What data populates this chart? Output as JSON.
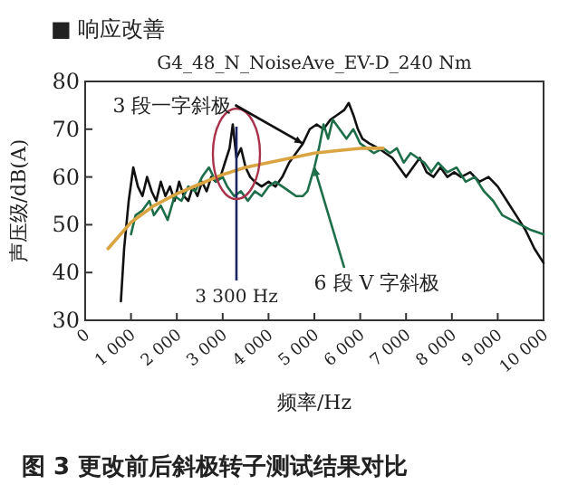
{
  "chart_data": {
    "type": "line",
    "title": "■ 响应改善",
    "subtitle": "G4_48_N_NoiseAve_EV-D_240 Nm",
    "xlabel": "频率/Hz",
    "ylabel": "声压级/dB(A)",
    "annotations": [
      "图 3 更改前后斜极转子测试结果对比"
    ],
    "xlim": [
      0,
      10000
    ],
    "ylim": [
      30,
      80
    ],
    "xticks": [
      0,
      {
        "value": 1000,
        "label": "1 000"
      },
      {
        "value": 2000,
        "label": "2 000"
      },
      {
        "value": 3000,
        "label": "3 000"
      },
      {
        "value": 4000,
        "label": "4 000"
      },
      {
        "value": 5000,
        "label": "5 000"
      },
      {
        "value": 6000,
        "label": "6 000"
      },
      {
        "value": 7000,
        "label": "7 000"
      },
      {
        "value": 8000,
        "label": "8 000"
      },
      {
        "value": 9000,
        "label": "9 000"
      },
      {
        "value": 10000,
        "label": "10 000"
      }
    ],
    "yticks": [
      30,
      40,
      50,
      60,
      70,
      80
    ],
    "grid": false,
    "ref_lines": [
      {
        "axis": "x",
        "value": 3300,
        "label": "3 300 Hz",
        "color": "#1c2560"
      }
    ],
    "series": [
      {
        "name": "3 段一字斜极",
        "color": "#111111",
        "x": [
          780,
          850,
          950,
          1050,
          1150,
          1250,
          1350,
          1450,
          1550,
          1650,
          1750,
          1850,
          1950,
          2050,
          2150,
          2250,
          2350,
          2450,
          2550,
          2650,
          2750,
          2850,
          2950,
          3050,
          3150,
          3220,
          3300,
          3400,
          3500,
          3600,
          3700,
          3850,
          4000,
          4150,
          4300,
          4450,
          4600,
          4750,
          4900,
          5050,
          5200,
          5350,
          5500,
          5650,
          5750,
          5850,
          5950,
          6050,
          6200,
          6400,
          6550,
          6700,
          6850,
          7000,
          7150,
          7300,
          7450,
          7600,
          7750,
          7900,
          8050,
          8200,
          8400,
          8600,
          8800,
          9000,
          9200,
          9400,
          9600,
          9800,
          10000
        ],
        "values": [
          34,
          45,
          55,
          62,
          58,
          56,
          60,
          57,
          55,
          59,
          56,
          58,
          55,
          59,
          56,
          55,
          58,
          56,
          59,
          57,
          60,
          59,
          60,
          63,
          66,
          71,
          64,
          66,
          62,
          60,
          59,
          58,
          59,
          58,
          60,
          63,
          65,
          67,
          70,
          71,
          70,
          72,
          73,
          74,
          75.5,
          73,
          70,
          68,
          67,
          66,
          65,
          64,
          62,
          60,
          62,
          64,
          61,
          60,
          62,
          60,
          61,
          60,
          61,
          59,
          60,
          58,
          55,
          52,
          49,
          45,
          42
        ]
      },
      {
        "name": "6 段 V 字斜极",
        "color": "#1f6e4a",
        "x": [
          1000,
          1100,
          1250,
          1400,
          1500,
          1650,
          1800,
          1950,
          2100,
          2250,
          2400,
          2550,
          2700,
          2850,
          3000,
          3100,
          3250,
          3400,
          3550,
          3700,
          3850,
          4000,
          4150,
          4300,
          4450,
          4600,
          4750,
          4850,
          5000,
          5100,
          5200,
          5300,
          5400,
          5550,
          5700,
          5850,
          6000,
          6150,
          6300,
          6500,
          6650,
          6800,
          6950,
          7100,
          7250,
          7400,
          7550,
          7700,
          7900,
          8100,
          8300,
          8500,
          8700,
          8900,
          9100,
          9300,
          9500,
          9700,
          10000
        ],
        "values": [
          48,
          52,
          53,
          55,
          52,
          54,
          51,
          56,
          55,
          58,
          57,
          60,
          62,
          59,
          60,
          58,
          56,
          57,
          55,
          57,
          56,
          58,
          59,
          58,
          57,
          56,
          56,
          57,
          62,
          66,
          71,
          68,
          72,
          70,
          68,
          70,
          67,
          66,
          65,
          66,
          65,
          66,
          63,
          65,
          64,
          63,
          61,
          63,
          61,
          62,
          59,
          60,
          57,
          55,
          52,
          51,
          50,
          49,
          48
        ]
      },
      {
        "color": "#d9a441",
        "x": [
          500,
          1000,
          1500,
          2000,
          2500,
          3000,
          3500,
          4000,
          4500,
          5000,
          5500,
          6000,
          6500
        ],
        "values": [
          45,
          50.5,
          54,
          56.5,
          58.5,
          60.5,
          62,
          63,
          64,
          65,
          65.5,
          66,
          66
        ]
      }
    ]
  }
}
